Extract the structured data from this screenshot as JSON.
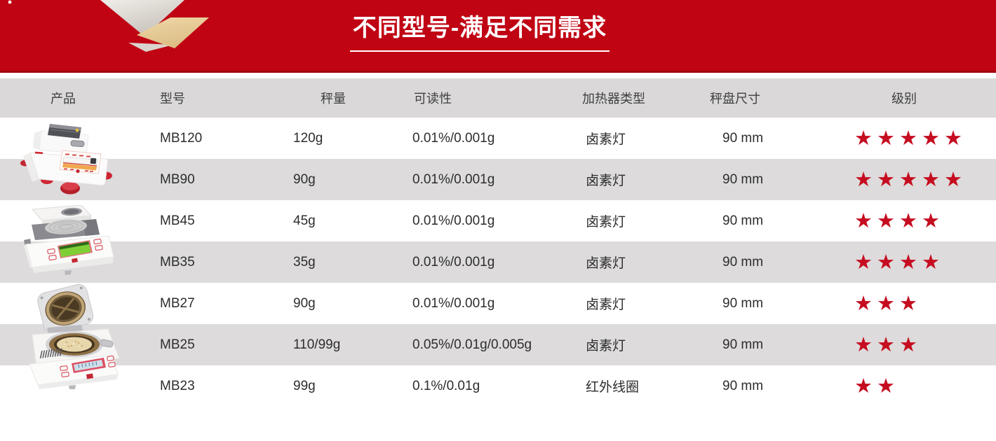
{
  "banner": {
    "title": "不同型号-满足不同需求",
    "background_color": "#c00414",
    "title_color": "#ffffff"
  },
  "table": {
    "columns": [
      {
        "key": "product",
        "label": "产品"
      },
      {
        "key": "model",
        "label": "型号"
      },
      {
        "key": "capacity",
        "label": "秤量"
      },
      {
        "key": "readability",
        "label": "可读性"
      },
      {
        "key": "heater",
        "label": "加热器类型"
      },
      {
        "key": "pan_size",
        "label": "秤盘尺寸"
      },
      {
        "key": "rating",
        "label": "级别"
      }
    ],
    "rows": [
      {
        "model": "MB120",
        "capacity": "120g",
        "readability": "0.01%/0.001g",
        "heater": "卤素灯",
        "pan_size": "90 mm",
        "rating": 5
      },
      {
        "model": "MB90",
        "capacity": "90g",
        "readability": "0.01%/0.001g",
        "heater": "卤素灯",
        "pan_size": "90 mm",
        "rating": 5
      },
      {
        "model": "MB45",
        "capacity": "45g",
        "readability": "0.01%/0.001g",
        "heater": "卤素灯",
        "pan_size": "90 mm",
        "rating": 4
      },
      {
        "model": "MB35",
        "capacity": "35g",
        "readability": "0.01%/0.001g",
        "heater": "卤素灯",
        "pan_size": "90 mm",
        "rating": 4
      },
      {
        "model": "MB27",
        "capacity": "90g",
        "readability": "0.01%/0.001g",
        "heater": "卤素灯",
        "pan_size": "90 mm",
        "rating": 3
      },
      {
        "model": "MB25",
        "capacity": "110/99g",
        "readability": "0.05%/0.01g/0.005g",
        "heater": "卤素灯",
        "pan_size": "90 mm",
        "rating": 3
      },
      {
        "model": "MB23",
        "capacity": "99g",
        "readability": "0.1%/0.01g",
        "heater": "红外线圈",
        "pan_size": "90 mm",
        "rating": 2
      }
    ],
    "star_glyph": "★",
    "star_color": "#c60c20",
    "header_bg": "#dad8d8",
    "stripe_bg": "#dddbdb"
  },
  "product_images": [
    {
      "name": "moisture-analyzer-photo-1"
    },
    {
      "name": "moisture-analyzer-photo-2"
    },
    {
      "name": "moisture-analyzer-photo-3"
    }
  ]
}
